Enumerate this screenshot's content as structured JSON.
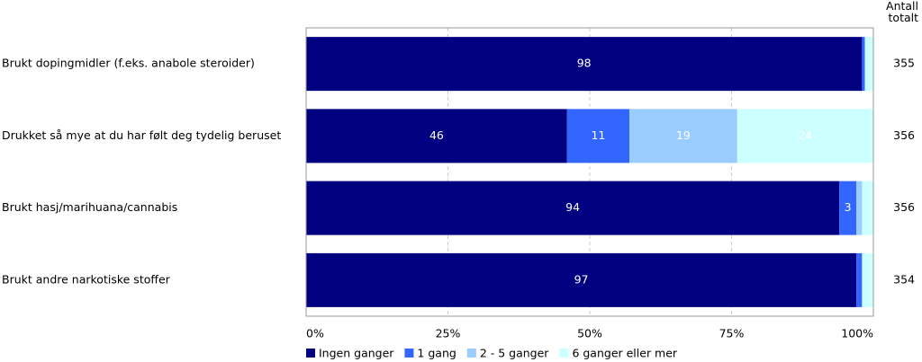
{
  "chart_data": {
    "type": "stacked-bar-horizontal",
    "categories": [
      "Brukt dopingmidler (f.eks. anabole steroider)",
      "Drukket så mye at du har følt deg tydelig beruset",
      "Brukt hasj/marihuana/cannabis",
      "Brukt andre narkotiske stoffer"
    ],
    "series": [
      {
        "name": "Ingen ganger",
        "color": "#000080",
        "values": [
          98,
          46,
          94,
          97
        ]
      },
      {
        "name": "1 gang",
        "color": "#3366ff",
        "values": [
          0.5,
          11,
          3,
          1
        ]
      },
      {
        "name": "2 - 5 ganger",
        "color": "#99ccff",
        "values": [
          0,
          19,
          1,
          0
        ]
      },
      {
        "name": "6 ganger eller mer",
        "color": "#ccffff",
        "values": [
          1.5,
          24,
          2,
          2
        ]
      }
    ],
    "xlim": [
      0,
      100
    ],
    "xticks": [
      {
        "value": 0,
        "label": "0%"
      },
      {
        "value": 25,
        "label": "25%"
      },
      {
        "value": 50,
        "label": "50%"
      },
      {
        "value": 75,
        "label": "75%"
      },
      {
        "value": 100,
        "label": "100%"
      }
    ],
    "grid": true,
    "count_header": "Antall totalt",
    "counts": [
      355,
      356,
      356,
      354
    ]
  }
}
